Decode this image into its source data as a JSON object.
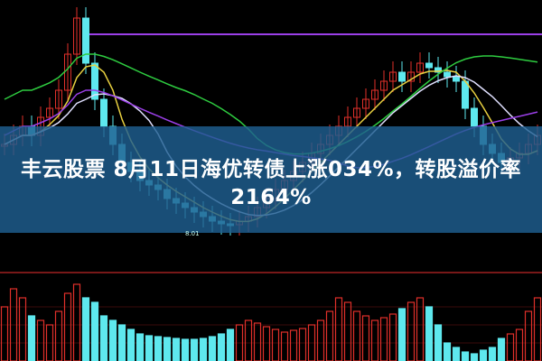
{
  "headline": {
    "line1": "丰云股票 8月11日海优转债上涨034%，转股溢价率",
    "line2": "2164%"
  },
  "chart_data": {
    "type": "candlestick",
    "title": "",
    "annotations": [
      "8.01"
    ],
    "price": [
      8.9,
      9.0,
      9.1,
      9.0,
      9.2,
      9.3,
      9.5,
      9.9,
      10.3,
      9.8,
      9.4,
      9.1,
      8.9,
      8.7,
      8.6,
      8.5,
      8.45,
      8.4,
      8.3,
      8.25,
      8.2,
      8.15,
      8.1,
      8.05,
      8.02,
      8.01,
      8.05,
      8.1,
      8.2,
      8.3,
      8.4,
      8.5,
      8.6,
      8.7,
      8.8,
      8.9,
      9.0,
      9.1,
      9.2,
      9.3,
      9.4,
      9.5,
      9.6,
      9.7,
      9.6,
      9.7,
      9.8,
      9.75,
      9.7,
      9.65,
      9.6,
      9.3,
      9.1,
      8.9,
      8.8,
      8.7,
      8.75,
      8.8,
      8.9,
      9.0
    ],
    "volume": [
      60,
      80,
      70,
      50,
      45,
      40,
      55,
      75,
      85,
      70,
      65,
      50,
      45,
      40,
      35,
      30,
      28,
      27,
      26,
      25,
      24,
      24,
      25,
      27,
      30,
      35,
      40,
      45,
      42,
      38,
      35,
      32,
      34,
      36,
      40,
      45,
      55,
      70,
      65,
      55,
      50,
      45,
      48,
      52,
      58,
      65,
      70,
      60,
      40,
      20,
      15,
      10,
      8,
      12,
      15,
      25,
      30,
      35,
      55,
      70
    ],
    "colors": {
      "up": "#e0302a",
      "down": "#5ee8ee",
      "ma_purple": "#9b3fe8",
      "ma_green": "#2ecc40",
      "ma_yellow": "#e8d040",
      "ma_white": "#e0e0ff",
      "banner": "#1e5f91"
    }
  }
}
